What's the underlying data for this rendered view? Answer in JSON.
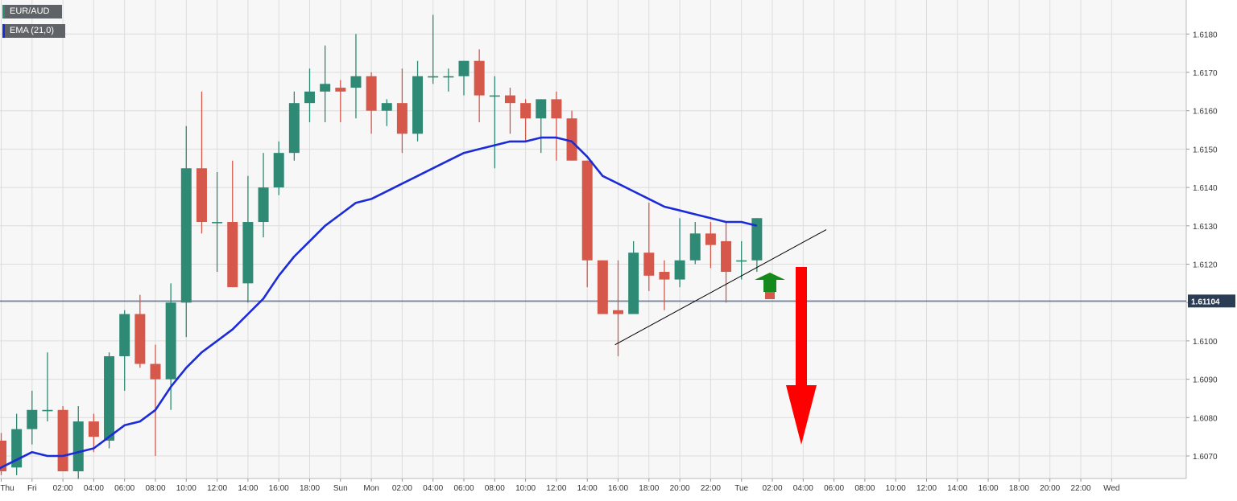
{
  "instrument": "EUR/AUD",
  "indicator": "EMA (21,0)",
  "current_price_label": "1.61104",
  "colors": {
    "up": "#2e8a74",
    "down": "#d6584a",
    "ema": "#1c2bd8",
    "trendline": "#000000",
    "price_line": "#2b3d55",
    "up_arrow": "#138a1b",
    "down_arrow": "#ff0000",
    "grid": "#dcdcdc",
    "plot_bg": "#f7f7f7"
  },
  "chart_data": {
    "type": "candlestick",
    "timeframe": "1H",
    "ylim": [
      1.6063,
      1.619
    ],
    "y_ticks": [
      "1.6070",
      "1.6080",
      "1.6090",
      "1.6100",
      "1.6110",
      "1.6120",
      "1.6130",
      "1.6140",
      "1.6150",
      "1.6160",
      "1.6170",
      "1.6180"
    ],
    "x_ticks": [
      "Thu",
      "Fri",
      "02:00",
      "04:00",
      "06:00",
      "08:00",
      "10:00",
      "12:00",
      "14:00",
      "16:00",
      "18:00",
      "Sun",
      "Mon",
      "02:00",
      "04:00",
      "06:00",
      "08:00",
      "10:00",
      "12:00",
      "14:00",
      "16:00",
      "18:00",
      "20:00",
      "22:00",
      "Tue",
      "02:00",
      "04:00",
      "06:00",
      "08:00",
      "10:00",
      "12:00",
      "14:00",
      "16:00",
      "18:00",
      "20:00",
      "22:00",
      "Wed"
    ],
    "candles": [
      {
        "o": 1.6074,
        "h": 1.6076,
        "l": 1.6065,
        "c": 1.6066
      },
      {
        "o": 1.6067,
        "h": 1.6081,
        "l": 1.6065,
        "c": 1.6077
      },
      {
        "o": 1.6077,
        "h": 1.6087,
        "l": 1.6073,
        "c": 1.6082
      },
      {
        "o": 1.6082,
        "h": 1.6097,
        "l": 1.6079,
        "c": 1.6082
      },
      {
        "o": 1.6082,
        "h": 1.6083,
        "l": 1.6066,
        "c": 1.6066
      },
      {
        "o": 1.6066,
        "h": 1.6083,
        "l": 1.6064,
        "c": 1.6079
      },
      {
        "o": 1.6079,
        "h": 1.6081,
        "l": 1.6071,
        "c": 1.6075
      },
      {
        "o": 1.6074,
        "h": 1.6097,
        "l": 1.6072,
        "c": 1.6096
      },
      {
        "o": 1.6096,
        "h": 1.6108,
        "l": 1.6087,
        "c": 1.6107
      },
      {
        "o": 1.6107,
        "h": 1.6112,
        "l": 1.6093,
        "c": 1.6094
      },
      {
        "o": 1.6094,
        "h": 1.6099,
        "l": 1.607,
        "c": 1.609
      },
      {
        "o": 1.609,
        "h": 1.6115,
        "l": 1.6082,
        "c": 1.611
      },
      {
        "o": 1.611,
        "h": 1.6156,
        "l": 1.6101,
        "c": 1.6145
      },
      {
        "o": 1.6145,
        "h": 1.6165,
        "l": 1.6128,
        "c": 1.6131
      },
      {
        "o": 1.6131,
        "h": 1.6144,
        "l": 1.6118,
        "c": 1.6131
      },
      {
        "o": 1.6131,
        "h": 1.6147,
        "l": 1.6114,
        "c": 1.6114
      },
      {
        "o": 1.6115,
        "h": 1.6143,
        "l": 1.611,
        "c": 1.6131
      },
      {
        "o": 1.6131,
        "h": 1.6149,
        "l": 1.6127,
        "c": 1.614
      },
      {
        "o": 1.614,
        "h": 1.6152,
        "l": 1.6138,
        "c": 1.6149
      },
      {
        "o": 1.6149,
        "h": 1.6165,
        "l": 1.6147,
        "c": 1.6162
      },
      {
        "o": 1.6162,
        "h": 1.6171,
        "l": 1.6157,
        "c": 1.6165
      },
      {
        "o": 1.6165,
        "h": 1.6177,
        "l": 1.6157,
        "c": 1.6167
      },
      {
        "o": 1.6166,
        "h": 1.6168,
        "l": 1.6157,
        "c": 1.6165
      },
      {
        "o": 1.6166,
        "h": 1.618,
        "l": 1.6158,
        "c": 1.6169
      },
      {
        "o": 1.6169,
        "h": 1.617,
        "l": 1.6154,
        "c": 1.616
      },
      {
        "o": 1.616,
        "h": 1.6163,
        "l": 1.6156,
        "c": 1.6162
      },
      {
        "o": 1.6162,
        "h": 1.6171,
        "l": 1.6149,
        "c": 1.6154
      },
      {
        "o": 1.6154,
        "h": 1.6173,
        "l": 1.6152,
        "c": 1.6169
      },
      {
        "o": 1.6169,
        "h": 1.6185,
        "l": 1.6167,
        "c": 1.6169
      },
      {
        "o": 1.6169,
        "h": 1.6171,
        "l": 1.6165,
        "c": 1.6169
      },
      {
        "o": 1.6169,
        "h": 1.6173,
        "l": 1.6164,
        "c": 1.6173
      },
      {
        "o": 1.6173,
        "h": 1.6176,
        "l": 1.6157,
        "c": 1.6164
      },
      {
        "o": 1.6164,
        "h": 1.6169,
        "l": 1.6145,
        "c": 1.6164
      },
      {
        "o": 1.6164,
        "h": 1.6166,
        "l": 1.6154,
        "c": 1.6162
      },
      {
        "o": 1.6162,
        "h": 1.6163,
        "l": 1.6152,
        "c": 1.6158
      },
      {
        "o": 1.6158,
        "h": 1.6163,
        "l": 1.6149,
        "c": 1.6163
      },
      {
        "o": 1.6163,
        "h": 1.6165,
        "l": 1.6147,
        "c": 1.6158
      },
      {
        "o": 1.6158,
        "h": 1.616,
        "l": 1.6147,
        "c": 1.6147
      },
      {
        "o": 1.6147,
        "h": 1.6147,
        "l": 1.6114,
        "c": 1.6121
      },
      {
        "o": 1.6121,
        "h": 1.6121,
        "l": 1.6107,
        "c": 1.6107
      },
      {
        "o": 1.6108,
        "h": 1.6121,
        "l": 1.6096,
        "c": 1.6107
      },
      {
        "o": 1.6107,
        "h": 1.6126,
        "l": 1.6107,
        "c": 1.6123
      },
      {
        "o": 1.6123,
        "h": 1.6136,
        "l": 1.6113,
        "c": 1.6117
      },
      {
        "o": 1.6118,
        "h": 1.6121,
        "l": 1.6108,
        "c": 1.6116
      },
      {
        "o": 1.6116,
        "h": 1.6132,
        "l": 1.6114,
        "c": 1.6121
      },
      {
        "o": 1.6121,
        "h": 1.6131,
        "l": 1.612,
        "c": 1.6128
      },
      {
        "o": 1.6128,
        "h": 1.6131,
        "l": 1.6119,
        "c": 1.6125
      },
      {
        "o": 1.6126,
        "h": 1.6131,
        "l": 1.611,
        "c": 1.6118
      },
      {
        "o": 1.6121,
        "h": 1.6126,
        "l": 1.6116,
        "c": 1.6121
      },
      {
        "o": 1.6121,
        "h": 1.6132,
        "l": 1.6118,
        "c": 1.6132
      }
    ],
    "ema": [
      1.6067,
      1.6069,
      1.6071,
      1.607,
      1.607,
      1.6071,
      1.6072,
      1.6075,
      1.6078,
      1.6079,
      1.6082,
      1.6088,
      1.6093,
      1.6097,
      1.61,
      1.6103,
      1.6107,
      1.6111,
      1.6117,
      1.6122,
      1.6126,
      1.613,
      1.6133,
      1.6136,
      1.6137,
      1.6139,
      1.6141,
      1.6143,
      1.6145,
      1.6147,
      1.6149,
      1.615,
      1.6151,
      1.6152,
      1.6152,
      1.6153,
      1.6153,
      1.6152,
      1.6148,
      1.6143,
      1.6141,
      1.6139,
      1.6137,
      1.6135,
      1.6134,
      1.6133,
      1.6132,
      1.6131,
      1.6131,
      1.613
    ],
    "trendline": [
      {
        "x": 39.8,
        "y": 1.6099
      },
      {
        "x": 53.5,
        "y": 1.6129
      }
    ],
    "current_price": 1.61104,
    "grid": true
  }
}
